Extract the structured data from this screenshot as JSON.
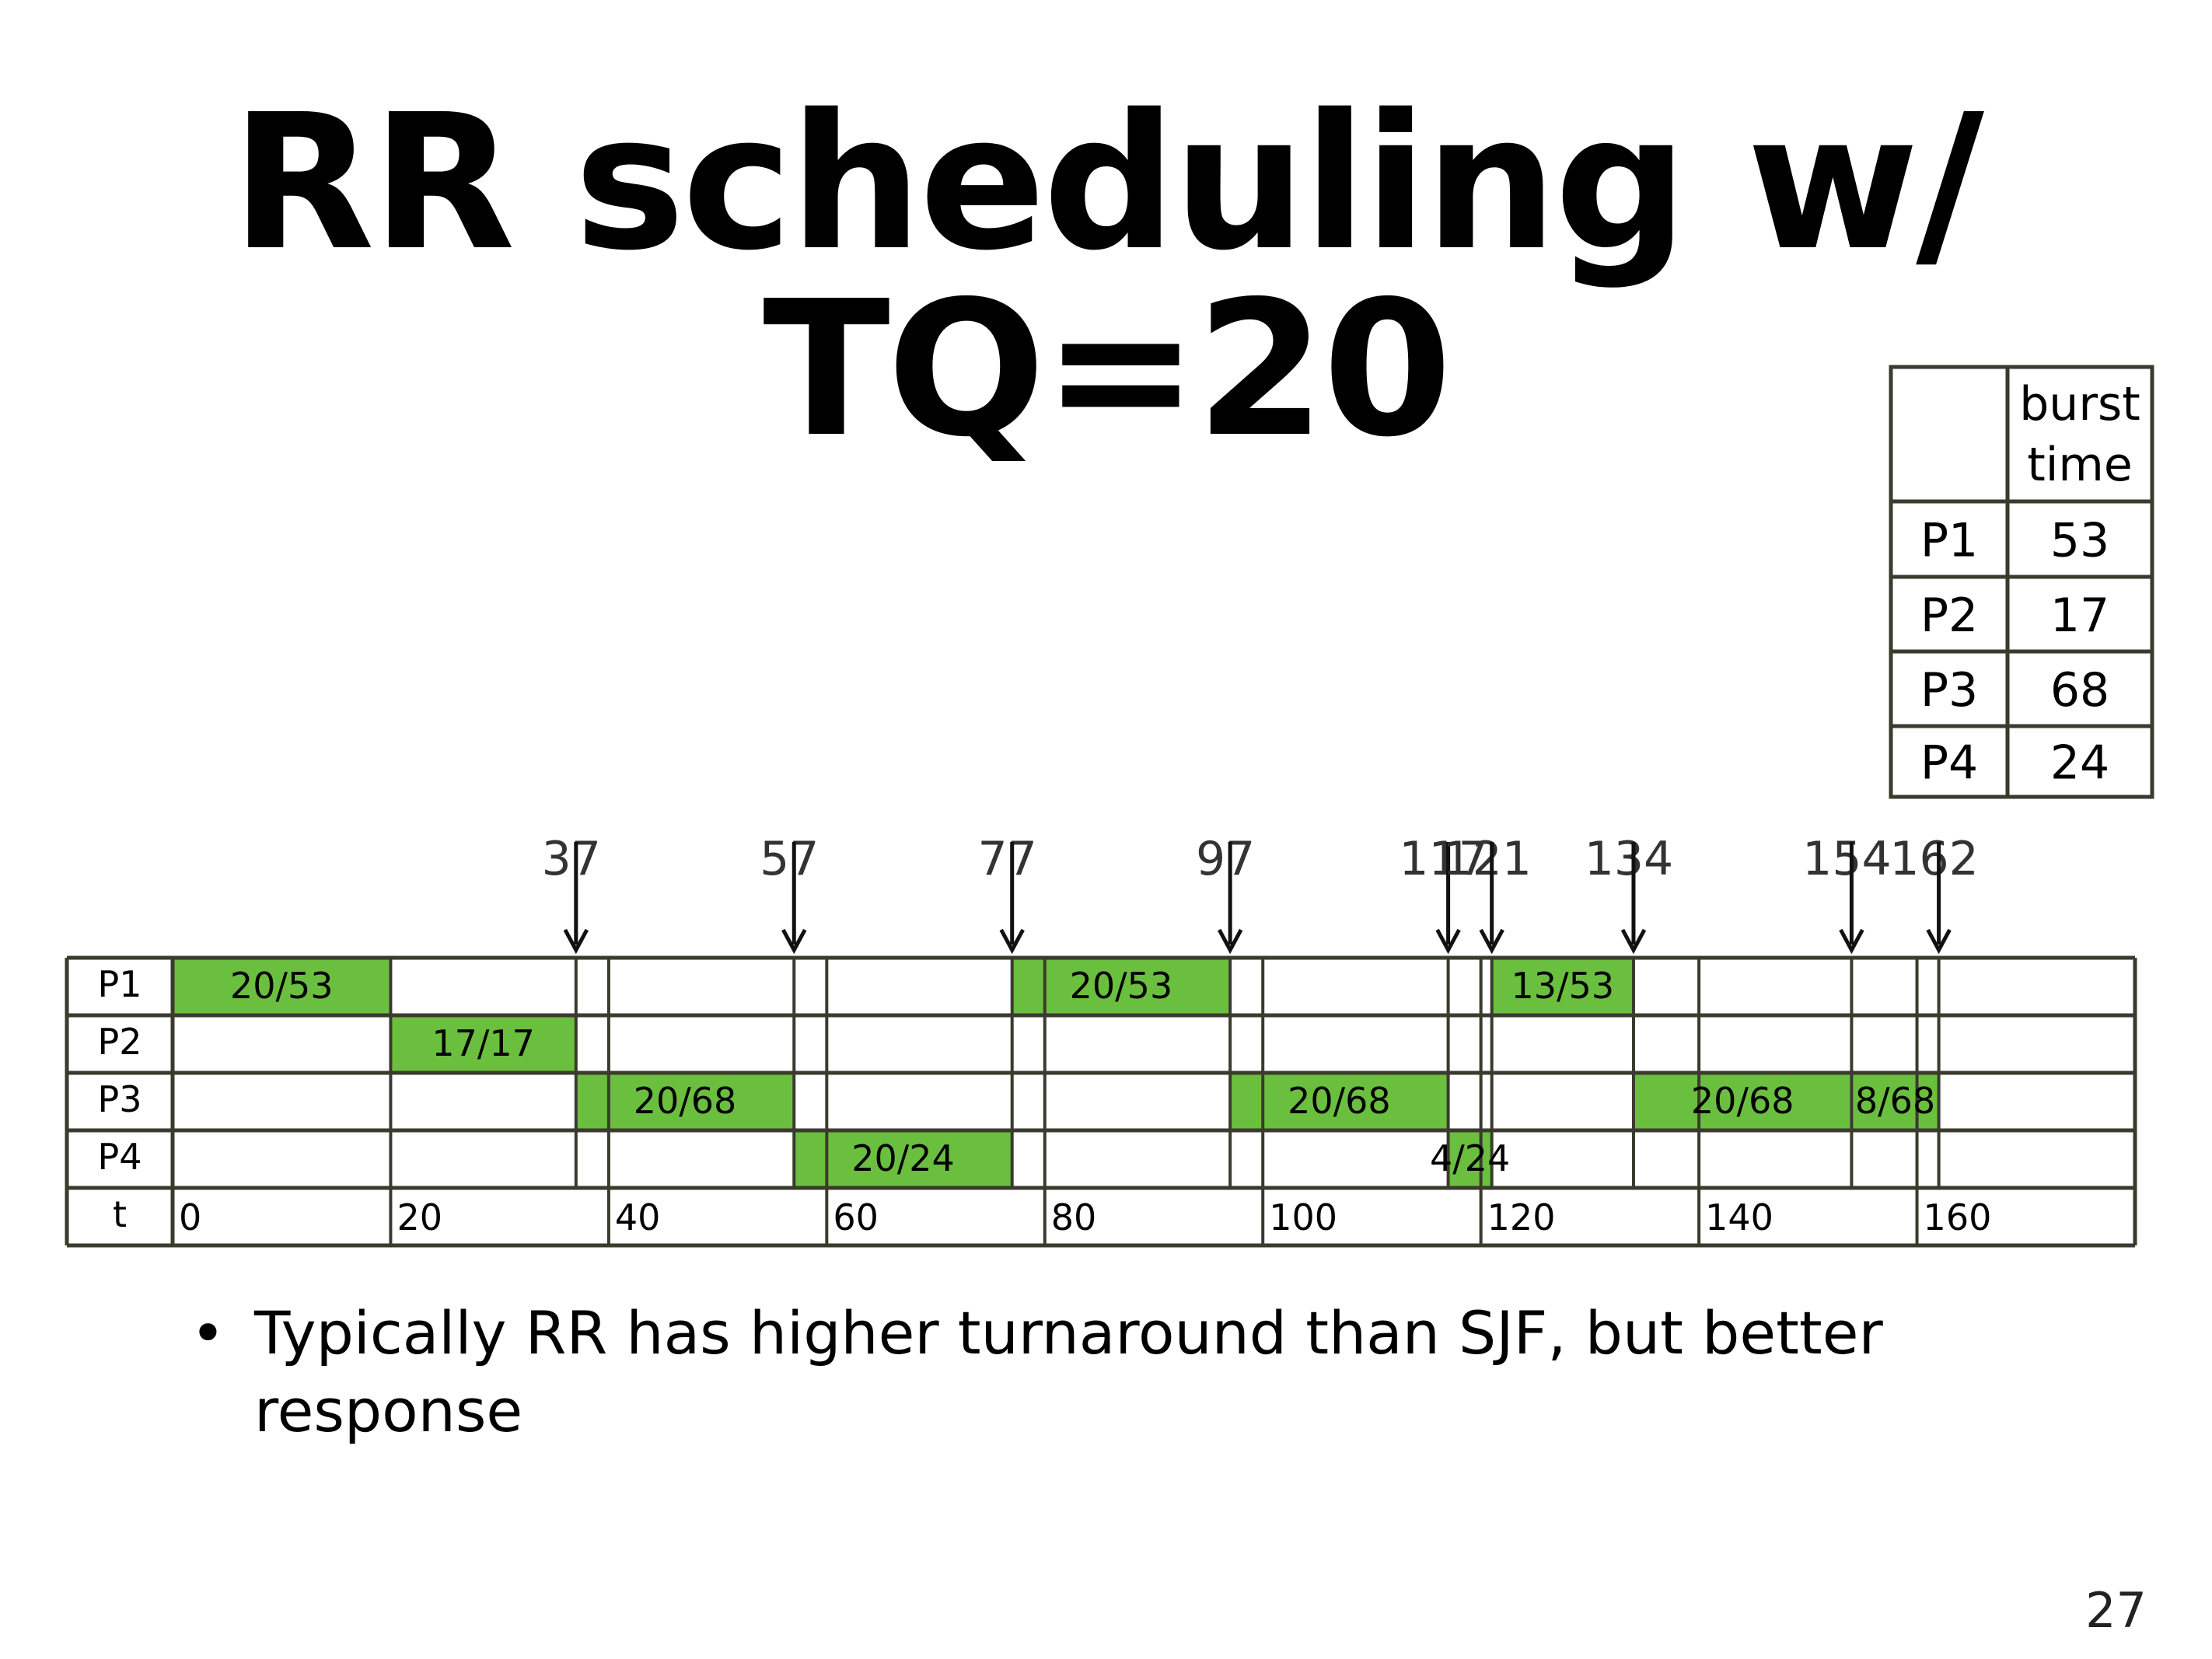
{
  "slide": {
    "title": "RR scheduling w/ TQ=20",
    "bullet": "Typically RR has higher turnaround than SJF, but better response",
    "page_number": "27"
  },
  "burst_table": {
    "header": [
      "",
      "burst time"
    ],
    "rows": [
      {
        "process": "P1",
        "burst": "53"
      },
      {
        "process": "P2",
        "burst": "17"
      },
      {
        "process": "P3",
        "burst": "68"
      },
      {
        "process": "P4",
        "burst": "24"
      }
    ]
  },
  "gantt": {
    "rows": [
      "P1",
      "P2",
      "P3",
      "P4"
    ],
    "time_row_label": "t",
    "time_ticks": [
      0,
      20,
      40,
      60,
      80,
      100,
      120,
      140,
      160
    ],
    "markers": [
      37,
      57,
      77,
      97,
      117,
      121,
      134,
      154,
      162
    ],
    "segments": [
      {
        "row": "P1",
        "start": 0,
        "end": 20,
        "label": "20/53"
      },
      {
        "row": "P2",
        "start": 20,
        "end": 37,
        "label": "17/17"
      },
      {
        "row": "P3",
        "start": 37,
        "end": 57,
        "label": "20/68"
      },
      {
        "row": "P4",
        "start": 57,
        "end": 77,
        "label": "20/24"
      },
      {
        "row": "P1",
        "start": 77,
        "end": 97,
        "label": "20/53"
      },
      {
        "row": "P3",
        "start": 97,
        "end": 117,
        "label": "20/68"
      },
      {
        "row": "P4",
        "start": 117,
        "end": 121,
        "label": "4/24"
      },
      {
        "row": "P1",
        "start": 121,
        "end": 134,
        "label": "13/53"
      },
      {
        "row": "P3",
        "start": 134,
        "end": 154,
        "label": "20/68"
      },
      {
        "row": "P3",
        "start": 154,
        "end": 162,
        "label": "8/68"
      }
    ],
    "colors": {
      "segment": "#6bbf3f",
      "grid": "#3a3a2e",
      "marker": "#111111"
    }
  }
}
